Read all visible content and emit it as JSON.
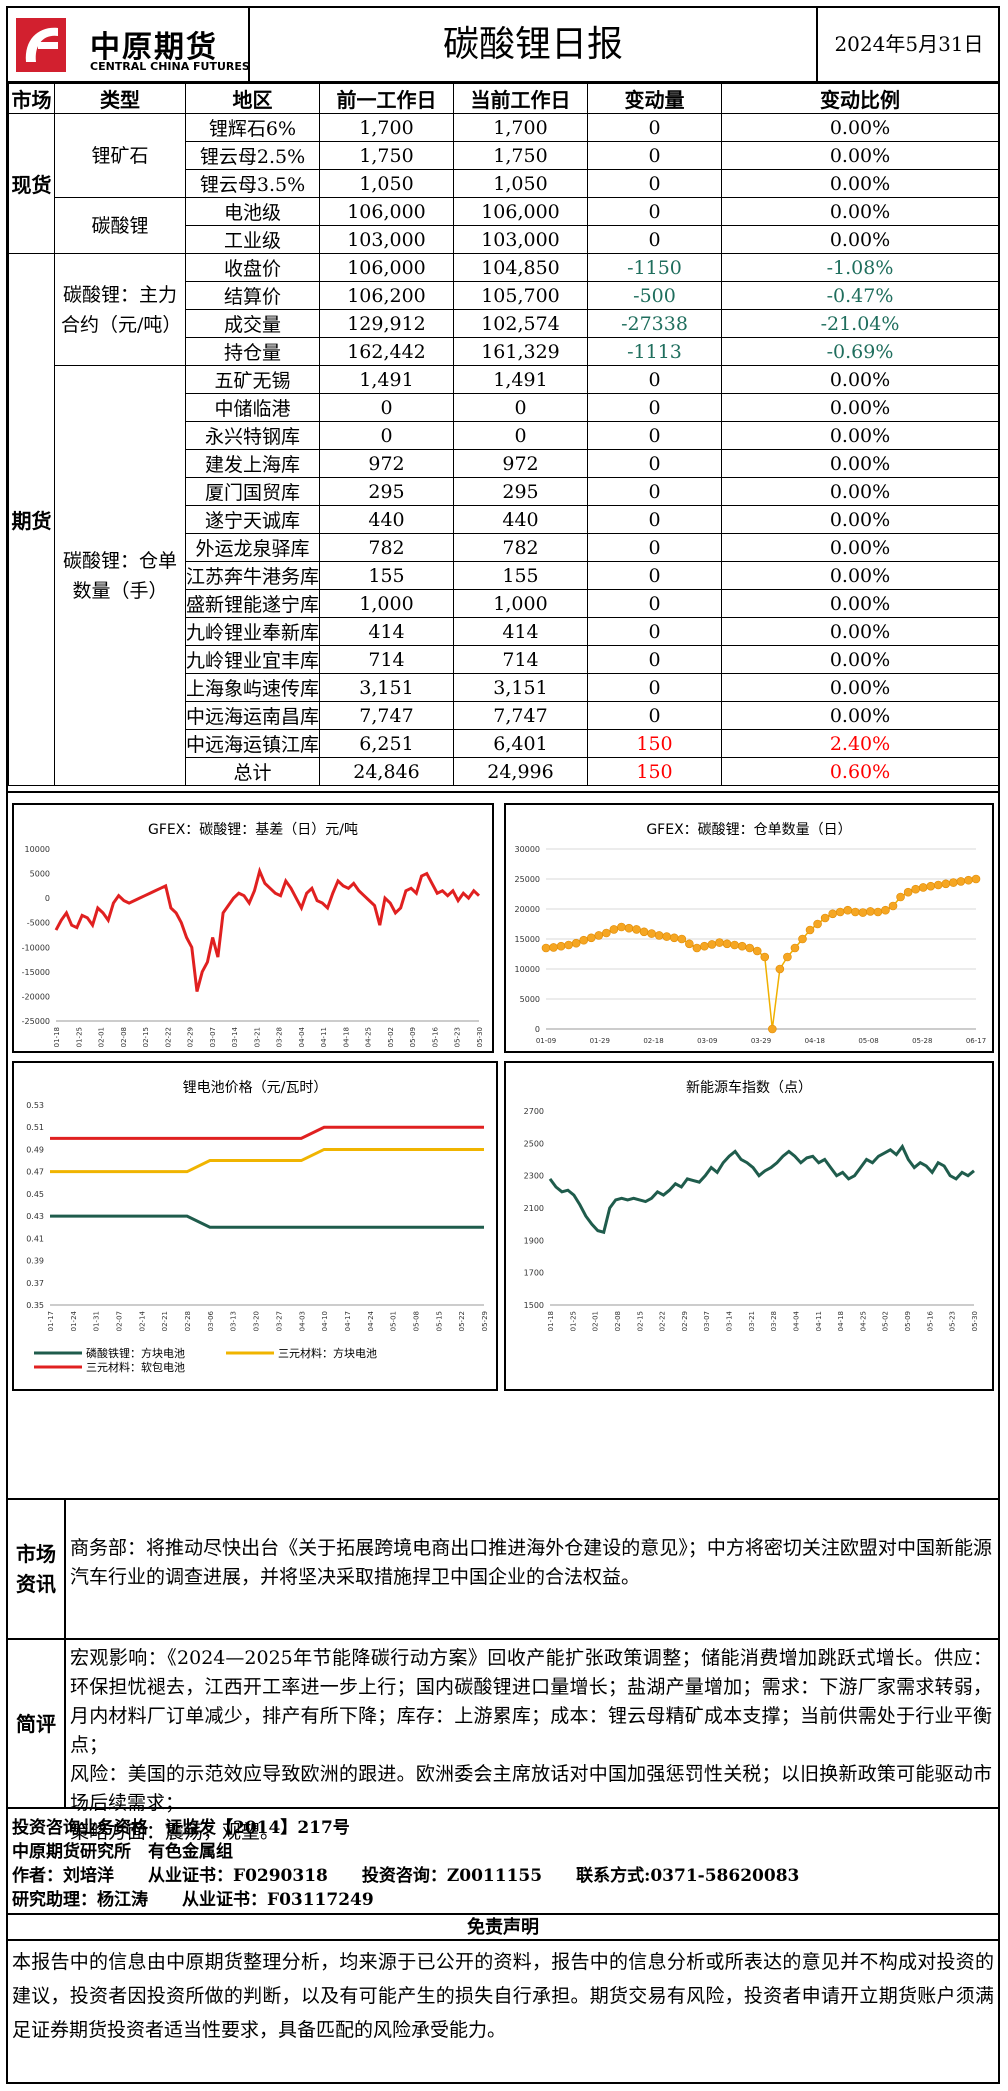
{
  "header": {
    "logo_cn": "中原期货",
    "logo_en": "CENTRAL CHINA FUTURES",
    "title": "碳酸锂日报",
    "date": "2024年5月31日"
  },
  "table": {
    "headers": [
      "市场",
      "类型",
      "地区",
      "前一工作日",
      "当前工作日",
      "变动量",
      "变动比例"
    ],
    "spot_label": "现货",
    "futures_label": "期货",
    "groups": {
      "ore": "锂矿石",
      "carbonate": "碳酸锂",
      "main": "碳酸锂：主力合约（元/吨）",
      "warrant": "碳酸锂：仓单数量（手）"
    },
    "rows": [
      {
        "region": "锂辉石6%",
        "prev": "1,700",
        "curr": "1,700",
        "chg": "0",
        "pct": "0.00%",
        "sign": "zero"
      },
      {
        "region": "锂云母2.5%",
        "prev": "1,750",
        "curr": "1,750",
        "chg": "0",
        "pct": "0.00%",
        "sign": "zero"
      },
      {
        "region": "锂云母3.5%",
        "prev": "1,050",
        "curr": "1,050",
        "chg": "0",
        "pct": "0.00%",
        "sign": "zero"
      },
      {
        "region": "电池级",
        "prev": "106,000",
        "curr": "106,000",
        "chg": "0",
        "pct": "0.00%",
        "sign": "zero"
      },
      {
        "region": "工业级",
        "prev": "103,000",
        "curr": "103,000",
        "chg": "0",
        "pct": "0.00%",
        "sign": "zero"
      },
      {
        "region": "收盘价",
        "prev": "106,000",
        "curr": "104,850",
        "chg": "-1150",
        "pct": "-1.08%",
        "sign": "neg"
      },
      {
        "region": "结算价",
        "prev": "106,200",
        "curr": "105,700",
        "chg": "-500",
        "pct": "-0.47%",
        "sign": "neg"
      },
      {
        "region": "成交量",
        "prev": "129,912",
        "curr": "102,574",
        "chg": "-27338",
        "pct": "-21.04%",
        "sign": "neg"
      },
      {
        "region": "持仓量",
        "prev": "162,442",
        "curr": "161,329",
        "chg": "-1113",
        "pct": "-0.69%",
        "sign": "neg"
      },
      {
        "region": "五矿无锡",
        "prev": "1,491",
        "curr": "1,491",
        "chg": "0",
        "pct": "0.00%",
        "sign": "zero"
      },
      {
        "region": "中储临港",
        "prev": "0",
        "curr": "0",
        "chg": "0",
        "pct": "0.00%",
        "sign": "zero"
      },
      {
        "region": "永兴特钢库",
        "prev": "0",
        "curr": "0",
        "chg": "0",
        "pct": "0.00%",
        "sign": "zero"
      },
      {
        "region": "建发上海库",
        "prev": "972",
        "curr": "972",
        "chg": "0",
        "pct": "0.00%",
        "sign": "zero"
      },
      {
        "region": "厦门国贸库",
        "prev": "295",
        "curr": "295",
        "chg": "0",
        "pct": "0.00%",
        "sign": "zero"
      },
      {
        "region": "遂宁天诚库",
        "prev": "440",
        "curr": "440",
        "chg": "0",
        "pct": "0.00%",
        "sign": "zero"
      },
      {
        "region": "外运龙泉驿库",
        "prev": "782",
        "curr": "782",
        "chg": "0",
        "pct": "0.00%",
        "sign": "zero"
      },
      {
        "region": "江苏奔牛港务库",
        "prev": "155",
        "curr": "155",
        "chg": "0",
        "pct": "0.00%",
        "sign": "zero"
      },
      {
        "region": "盛新锂能遂宁库",
        "prev": "1,000",
        "curr": "1,000",
        "chg": "0",
        "pct": "0.00%",
        "sign": "zero"
      },
      {
        "region": "九岭锂业奉新库",
        "prev": "414",
        "curr": "414",
        "chg": "0",
        "pct": "0.00%",
        "sign": "zero"
      },
      {
        "region": "九岭锂业宜丰库",
        "prev": "714",
        "curr": "714",
        "chg": "0",
        "pct": "0.00%",
        "sign": "zero"
      },
      {
        "region": "上海象屿速传库",
        "prev": "3,151",
        "curr": "3,151",
        "chg": "0",
        "pct": "0.00%",
        "sign": "zero"
      },
      {
        "region": "中远海运南昌库",
        "prev": "7,747",
        "curr": "7,747",
        "chg": "0",
        "pct": "0.00%",
        "sign": "zero"
      },
      {
        "region": "中远海运镇江库",
        "prev": "6,251",
        "curr": "6,401",
        "chg": "150",
        "pct": "2.40%",
        "sign": "pos"
      },
      {
        "region": "总计",
        "prev": "24,846",
        "curr": "24,996",
        "chg": "150",
        "pct": "0.60%",
        "sign": "pos"
      }
    ]
  },
  "chart_data": [
    {
      "type": "line",
      "title": "GFEX：碳酸锂：基差（日）元/吨",
      "color": "#e02020",
      "ylim": [
        -25000,
        10000
      ],
      "yticks": [
        "10000",
        "5000",
        "0",
        "-5000",
        "-10000",
        "-15000",
        "-20000",
        "-25000"
      ],
      "xticks": [
        "01-18",
        "01-25",
        "02-01",
        "02-08",
        "02-15",
        "02-22",
        "02-29",
        "03-07",
        "03-14",
        "03-21",
        "03-28",
        "04-04",
        "04-11",
        "04-18",
        "04-25",
        "05-02",
        "05-09",
        "05-16",
        "05-23",
        "05-30"
      ],
      "values": [
        -6500,
        -4500,
        -3000,
        -5500,
        -6000,
        -3500,
        -4000,
        -5500,
        -2000,
        -3000,
        -4500,
        -1000,
        500,
        -500,
        -1000,
        -500,
        0,
        500,
        1000,
        1500,
        2000,
        2500,
        -2000,
        -3000,
        -5000,
        -8000,
        -10000,
        -19000,
        -15000,
        -13000,
        -8000,
        -12000,
        -3000,
        -1500,
        0,
        1000,
        500,
        -1000,
        1500,
        5500,
        3000,
        2000,
        1000,
        500,
        3500,
        2000,
        0,
        -2000,
        1000,
        2000,
        -500,
        -1000,
        -2000,
        1000,
        3500,
        2500,
        2000,
        3000,
        1500,
        500,
        -500,
        -1500,
        -5500,
        0,
        -1000,
        -3000,
        -2000,
        1500,
        2000,
        1000,
        4500,
        5000,
        3000,
        1000,
        1500,
        500,
        1500,
        -500,
        1000,
        0,
        1500,
        500
      ]
    },
    {
      "type": "line",
      "title": "GFEX：碳酸锂：仓单数量（日）",
      "color": "#f0b000",
      "ylim": [
        0,
        30000
      ],
      "yticks": [
        "30000",
        "25000",
        "20000",
        "15000",
        "10000",
        "5000",
        "0"
      ],
      "xticks": [
        "01-09",
        "01-29",
        "02-18",
        "03-09",
        "03-29",
        "04-18",
        "05-08",
        "05-28",
        "06-17"
      ],
      "values": [
        13500,
        13600,
        13800,
        14000,
        14300,
        14800,
        15200,
        15600,
        16000,
        16600,
        17000,
        16800,
        16600,
        16200,
        15900,
        15600,
        15400,
        15200,
        15000,
        14200,
        13500,
        13800,
        14100,
        14400,
        14200,
        14000,
        13800,
        13500,
        13000,
        12000,
        0,
        10000,
        12000,
        13500,
        15000,
        16500,
        17500,
        18500,
        19200,
        19500,
        19800,
        19500,
        19400,
        19600,
        19500,
        19800,
        20500,
        22000,
        22800,
        23300,
        23600,
        23800,
        24000,
        24200,
        24400,
        24600,
        24800,
        25000
      ]
    },
    {
      "type": "line",
      "title": "锂电池价格（元/瓦时）",
      "ylim": [
        0.35,
        0.53
      ],
      "yticks": [
        "0.53",
        "0.51",
        "0.49",
        "0.47",
        "0.45",
        "0.43",
        "0.41",
        "0.39",
        "0.37",
        "0.35"
      ],
      "xticks": [
        "01-17",
        "01-24",
        "01-31",
        "02-07",
        "02-14",
        "02-21",
        "02-28",
        "03-06",
        "03-13",
        "03-20",
        "03-27",
        "04-03",
        "04-10",
        "04-17",
        "04-24",
        "05-01",
        "05-08",
        "05-15",
        "05-22",
        "05-29"
      ],
      "series": [
        {
          "name": "磷酸铁锂：方块电池",
          "color": "#1f5c4c",
          "values": [
            0.43,
            0.43,
            0.43,
            0.43,
            0.43,
            0.43,
            0.43,
            0.42,
            0.42,
            0.42,
            0.42,
            0.42,
            0.42,
            0.42,
            0.42,
            0.42,
            0.42,
            0.42,
            0.42,
            0.42
          ]
        },
        {
          "name": "三元材料：方块电池",
          "color": "#f0b400",
          "values": [
            0.47,
            0.47,
            0.47,
            0.47,
            0.47,
            0.47,
            0.47,
            0.48,
            0.48,
            0.48,
            0.48,
            0.48,
            0.49,
            0.49,
            0.49,
            0.49,
            0.49,
            0.49,
            0.49,
            0.49
          ]
        },
        {
          "name": "三元材料：软包电池",
          "color": "#e02020",
          "values": [
            0.5,
            0.5,
            0.5,
            0.5,
            0.5,
            0.5,
            0.5,
            0.5,
            0.5,
            0.5,
            0.5,
            0.5,
            0.51,
            0.51,
            0.51,
            0.51,
            0.51,
            0.51,
            0.51,
            0.51
          ]
        }
      ]
    },
    {
      "type": "line",
      "title": "新能源车指数（点）",
      "color": "#1f5c4c",
      "ylim": [
        1500,
        2700
      ],
      "yticks": [
        "2700",
        "2500",
        "2300",
        "2100",
        "1900",
        "1700",
        "1500"
      ],
      "xticks": [
        "01-18",
        "01-25",
        "02-01",
        "02-08",
        "02-15",
        "02-22",
        "02-29",
        "03-07",
        "03-14",
        "03-21",
        "03-28",
        "04-04",
        "04-11",
        "04-18",
        "04-25",
        "05-02",
        "05-09",
        "05-16",
        "05-23",
        "05-30"
      ],
      "values": [
        2280,
        2230,
        2200,
        2210,
        2180,
        2120,
        2050,
        2000,
        1960,
        1950,
        2100,
        2150,
        2160,
        2150,
        2160,
        2150,
        2140,
        2160,
        2200,
        2180,
        2210,
        2250,
        2230,
        2280,
        2270,
        2260,
        2300,
        2350,
        2320,
        2380,
        2420,
        2450,
        2400,
        2380,
        2350,
        2300,
        2330,
        2350,
        2380,
        2420,
        2450,
        2420,
        2380,
        2410,
        2420,
        2380,
        2400,
        2350,
        2300,
        2320,
        2280,
        2300,
        2350,
        2400,
        2380,
        2420,
        2440,
        2460,
        2430,
        2480,
        2400,
        2350,
        2380,
        2360,
        2320,
        2380,
        2360,
        2300,
        2280,
        2320,
        2300,
        2330
      ]
    }
  ],
  "market": {
    "label": "市场资讯",
    "text": "商务部：将推动尽快出台《关于拓展跨境电商出口推进海外仓建设的意见》；中方将密切关注欧盟对中国新能源汽车行业的调查进展，并将坚决采取措施捍卫中国企业的合法权益。"
  },
  "review": {
    "label": "简评",
    "p1": "宏观影响：《2024—2025年节能降碳行动方案》回收产能扩张政策调整；储能消费增加跳跃式增长。供应：环保担忧褪去，江西开工率进一步上行；国内碳酸锂进口量增长；盐湖产量增加；需求：下游厂家需求转弱，月内材料厂订单减少，排产有所下降；库存：上游累库；成本：锂云母精矿成本支撑；当前供需处于行业平衡点；",
    "p2": "风险：美国的示范效应导致欧洲的跟进。欧洲委会主席放话对中国加强惩罚性关税；以旧换新政策可能驱动市场后续需求；",
    "p3": "策略方面：震荡，观望。"
  },
  "info": {
    "line1": "投资咨询业务资格　证监发【2014】217号",
    "line2": "中原期货研究所　有色金属组",
    "line3": "作者：刘培洋　　从业证书：F0290318　　投资咨询：Z0011155　　联系方式:0371-58620083",
    "line4": "研究助理：杨江涛　　从业证书：F03117249"
  },
  "disclaimer": {
    "title": "免责声明",
    "text": "本报告中的信息由中原期货整理分析，均来源于已公开的资料，报告中的信息分析或所表达的意见并不构成对投资的建议，投资者因投资所做的判断，以及有可能产生的损失自行承担。期货交易有风险，投资者申请开立期货账户须满足证券期货投资者适当性要求，具备匹配的风险承受能力。"
  }
}
